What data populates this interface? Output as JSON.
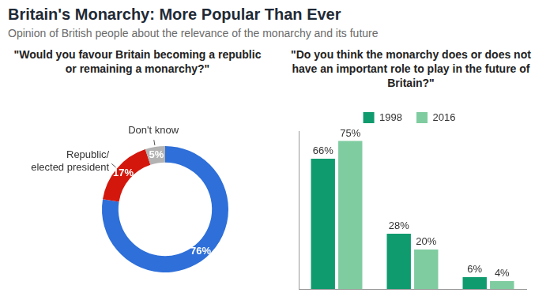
{
  "title": "Britain's Monarchy: More Popular Than Ever",
  "subtitle": "Opinion of British people about the relevance of the monarchy and its future",
  "chart_data": [
    {
      "type": "doughnut",
      "title": "\"Would you favour Britain becoming a republic or remaining a monarchy?\"",
      "categories": [
        null,
        "Republic/ elected president",
        "Don't know"
      ],
      "values": [
        76,
        17,
        5
      ],
      "value_labels": [
        "76%",
        "17%",
        "5%"
      ],
      "colors": [
        "#2e6fd9",
        "#d4170c",
        "#b3b3b3"
      ],
      "data_labels": true
    },
    {
      "type": "bar",
      "title": "\"Do you think the monarchy does or does not have an important role to play in the future of Britain?\"",
      "categories": [
        null,
        null,
        null
      ],
      "series": [
        {
          "name": "1998",
          "color": "#0f9b6e",
          "values": [
            66,
            28,
            6
          ],
          "value_labels": [
            "66%",
            "28%",
            "6%"
          ]
        },
        {
          "name": "2016",
          "color": "#7fcca0",
          "values": [
            75,
            20,
            4
          ],
          "value_labels": [
            "75%",
            "20%",
            "4%"
          ]
        }
      ],
      "ylim": [
        0,
        80
      ],
      "grid": false,
      "legend": "top",
      "data_labels": true,
      "tick_labels": false
    }
  ]
}
